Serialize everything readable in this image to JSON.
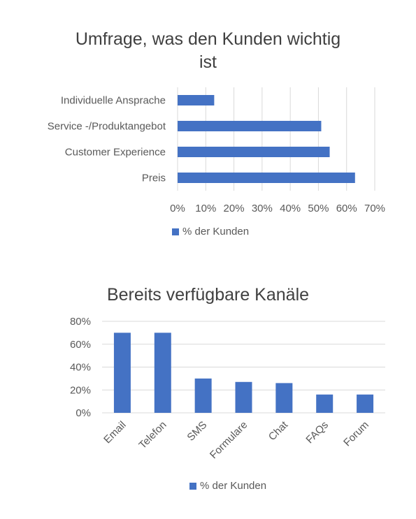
{
  "chart_data": [
    {
      "type": "bar",
      "orientation": "horizontal",
      "title_lines": [
        "Umfrage, was den Kunden wichtig",
        "ist"
      ],
      "categories": [
        "Individuelle Ansprache",
        "Service -/Produktangebot",
        "Customer Experience",
        "Preis"
      ],
      "series": [
        {
          "name": "% der Kunden",
          "values": [
            0.13,
            0.51,
            0.54,
            0.63
          ]
        }
      ],
      "xlim": [
        0,
        0.7
      ],
      "x_ticks": [
        "0%",
        "10%",
        "20%",
        "30%",
        "40%",
        "50%",
        "60%",
        "70%"
      ],
      "grid": "vertical",
      "legend": "bottom",
      "color": "#4472c4"
    },
    {
      "type": "bar",
      "orientation": "vertical",
      "title": "Bereits verfügbare Kanäle",
      "categories": [
        "Email",
        "Telefon",
        "SMS",
        "Formulare",
        "Chat",
        "FAQs",
        "Forum"
      ],
      "series": [
        {
          "name": "% der Kunden",
          "values": [
            0.7,
            0.7,
            0.3,
            0.27,
            0.26,
            0.16,
            0.16
          ]
        }
      ],
      "ylim": [
        0,
        0.8
      ],
      "y_ticks": [
        "0%",
        "20%",
        "40%",
        "60%",
        "80%"
      ],
      "grid": "horizontal",
      "legend": "bottom",
      "color": "#4472c4"
    }
  ]
}
